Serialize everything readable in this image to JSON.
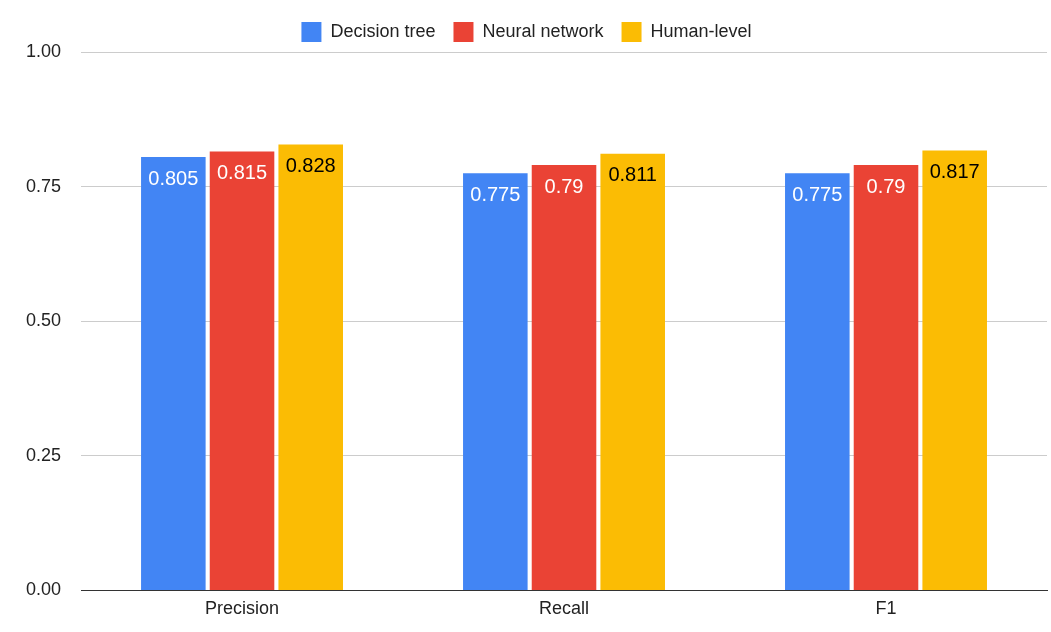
{
  "chart_data": {
    "type": "bar",
    "categories": [
      "Precision",
      "Recall",
      "F1"
    ],
    "series": [
      {
        "name": "Decision tree",
        "color": "#4285f4",
        "values": [
          0.805,
          0.775,
          0.775
        ]
      },
      {
        "name": "Neural network",
        "color": "#ea4335",
        "values": [
          0.815,
          0.79,
          0.79
        ]
      },
      {
        "name": "Human-level",
        "color": "#fbbc04",
        "values": [
          0.828,
          0.811,
          0.817
        ]
      }
    ],
    "ylim": [
      0,
      1
    ],
    "yticks": [
      {
        "value": 0,
        "label": "0.00"
      },
      {
        "value": 0.25,
        "label": "0.25"
      },
      {
        "value": 0.5,
        "label": "0.50"
      },
      {
        "value": 0.75,
        "label": "0.75"
      },
      {
        "value": 1,
        "label": "1.00"
      }
    ],
    "grid": "y",
    "legend": "top",
    "data_labels": true
  }
}
